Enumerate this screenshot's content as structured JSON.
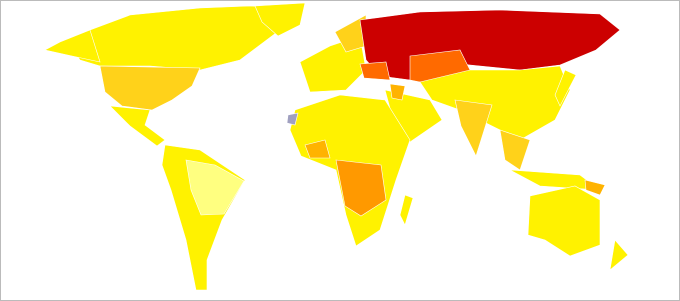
{
  "map": {
    "palette": [
      "#fff200",
      "#ffff80",
      "#ffd21a",
      "#ffb300",
      "#ff9900",
      "#ff6a00",
      "#cc0000",
      "#a0a0c0"
    ]
  }
}
